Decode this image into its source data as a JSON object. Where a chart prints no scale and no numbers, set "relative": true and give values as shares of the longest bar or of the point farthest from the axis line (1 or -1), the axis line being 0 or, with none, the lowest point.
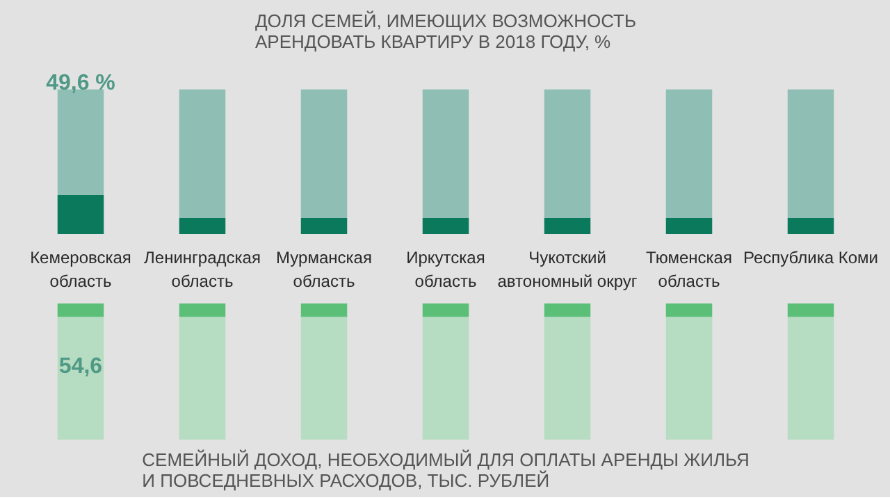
{
  "chart_data": [
    {
      "type": "bar",
      "title": "ДОЛЯ СЕМЕЙ, ИМЕЮЩИХ ВОЗМОЖНОСТЬ\nАРЕНДОВАТЬ КВАРТИРУ В 2018 ГОДУ, %",
      "relative": true,
      "stacked": true,
      "categories": [
        "Кемеровская область",
        "Ленинградская область",
        "Мурманская область",
        "Иркутская область",
        "Чукотский автономный округ",
        "Тюменская область",
        "Республика Коми"
      ],
      "series": [
        {
          "color": "#0b7a5c",
          "values": [
            0.27,
            0.11,
            0.11,
            0.11,
            0.11,
            0.11,
            0.11
          ]
        },
        {
          "color": "#8fbfb4",
          "values": [
            0.73,
            0.89,
            0.89,
            0.89,
            0.89,
            0.89,
            0.89
          ]
        }
      ],
      "annotations": [
        "49,6 %"
      ]
    },
    {
      "type": "bar",
      "title": "СЕМЕЙНЫЙ ДОХОД, НЕОБХОДИМЫЙ ДЛЯ ОПЛАТЫ АРЕНДЫ ЖИЛЬЯ\nИ ПОВСЕДНЕВНЫХ РАСХОДОВ, ТЫС. РУБЛЕЙ",
      "relative": true,
      "stacked": true,
      "categories": [
        null,
        null,
        null,
        null,
        null,
        null,
        null
      ],
      "series": [
        {
          "color": "#5cbf78",
          "values": [
            -0.1,
            -0.1,
            -0.1,
            -0.1,
            -0.1,
            -0.1,
            -0.1
          ]
        },
        {
          "color": "#b6dcc2",
          "values": [
            -0.9,
            -0.9,
            -0.9,
            -0.9,
            -0.9,
            -0.9,
            -0.9
          ]
        }
      ],
      "annotations": [
        "54,6"
      ]
    }
  ]
}
